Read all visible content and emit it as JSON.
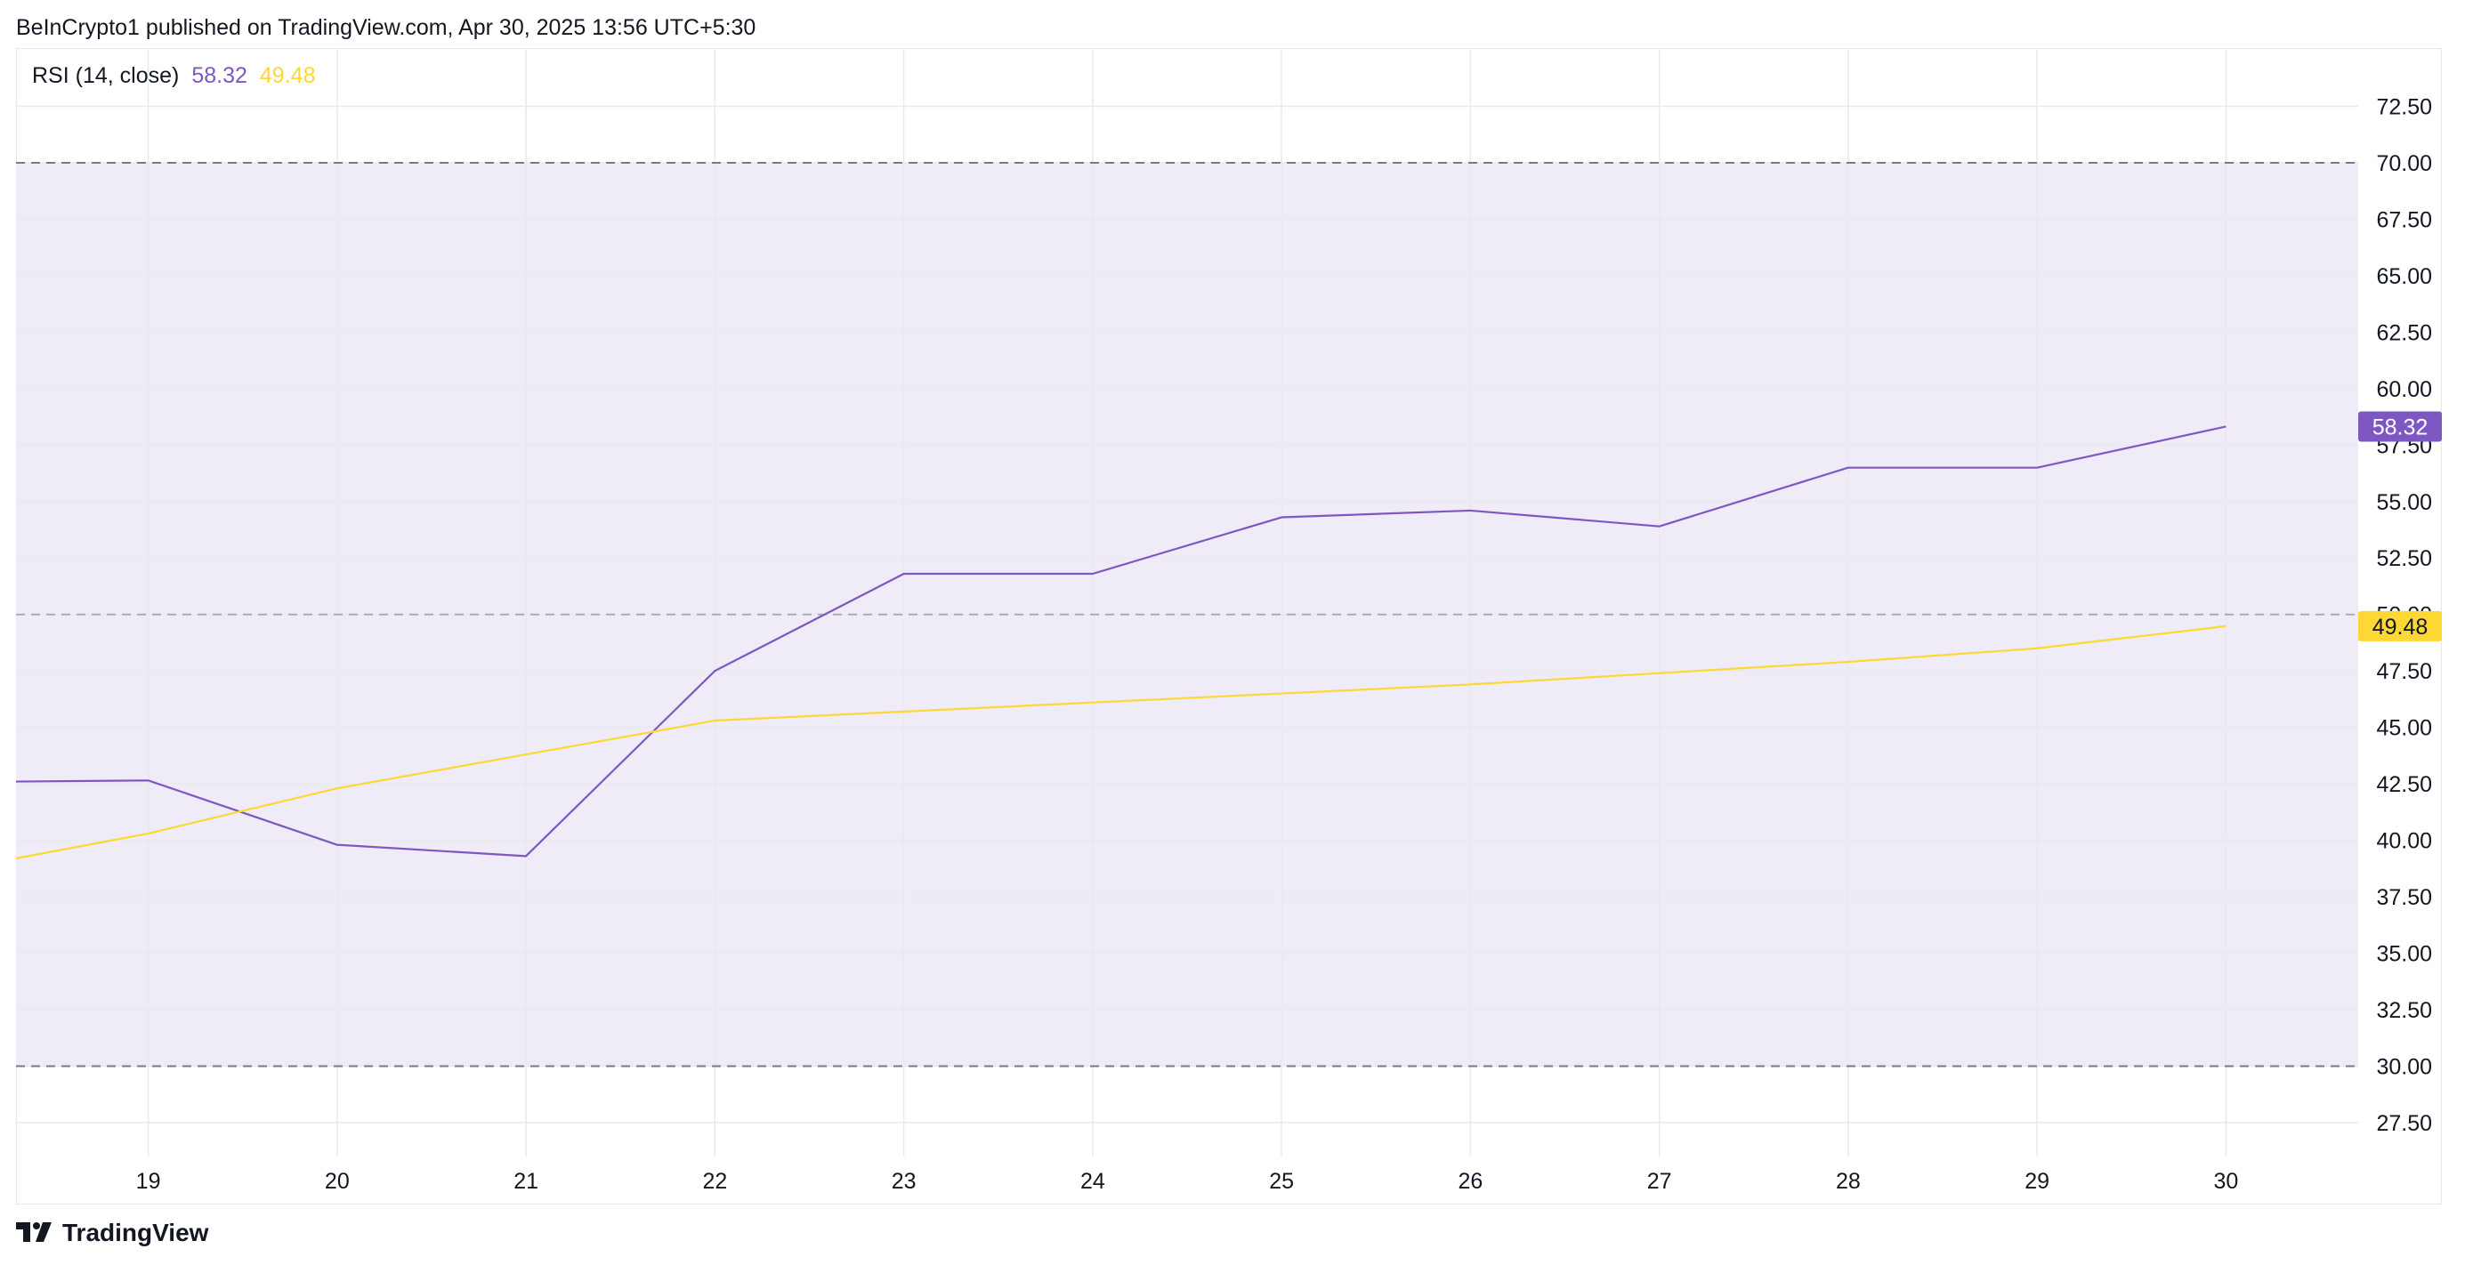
{
  "header": {
    "publisher_line": "BeInCrypto1 published on TradingView.com, Apr 30, 2025 13:56 UTC+5:30"
  },
  "legend": {
    "indicator": "RSI (14, close)",
    "rsi_value": "58.32",
    "ma_value": "49.48"
  },
  "footer": {
    "logo_icon": "tradingview-logo-icon",
    "brand": "TradingView"
  },
  "colors": {
    "rsi_line": "#7e57c2",
    "ma_line": "#fdd835",
    "band_fill": "#efebf7",
    "band_line": "#787b86",
    "grid": "#e9e9ee"
  },
  "chart_data": {
    "type": "line",
    "x": [
      18.3,
      19,
      20,
      21,
      22,
      23,
      24,
      25,
      26,
      27,
      28,
      29,
      30
    ],
    "x_ticks": [
      "19",
      "20",
      "21",
      "22",
      "23",
      "24",
      "25",
      "26",
      "27",
      "28",
      "29",
      "30"
    ],
    "x_tick_values": [
      19,
      20,
      21,
      22,
      23,
      24,
      25,
      26,
      27,
      28,
      29,
      30
    ],
    "xlim": [
      18.3,
      30.7
    ],
    "y_ticks": [
      "27.50",
      "30.00",
      "32.50",
      "35.00",
      "37.50",
      "40.00",
      "42.50",
      "45.00",
      "47.50",
      "50.00",
      "52.50",
      "55.00",
      "57.50",
      "60.00",
      "62.50",
      "65.00",
      "67.50",
      "70.00",
      "72.50"
    ],
    "y_tick_values": [
      27.5,
      30,
      32.5,
      35,
      37.5,
      40,
      42.5,
      45,
      47.5,
      50,
      52.5,
      55,
      57.5,
      60,
      62.5,
      65,
      67.5,
      70,
      72.5
    ],
    "ylim": [
      26,
      75
    ],
    "bands": {
      "upper": 70,
      "middle": 50,
      "lower": 30
    },
    "series": [
      {
        "values": [
          42.6,
          42.65,
          39.8,
          39.3,
          47.5,
          51.8,
          51.8,
          54.3,
          54.6,
          53.9,
          56.5,
          56.5,
          58.32
        ]
      },
      {
        "values": [
          39.2,
          40.3,
          42.3,
          43.8,
          45.3,
          45.7,
          46.1,
          46.5,
          46.9,
          47.4,
          47.9,
          48.5,
          49.48
        ]
      }
    ],
    "last_labels": [
      "58.32",
      "49.48"
    ],
    "grid": true,
    "title": "",
    "xlabel": "",
    "ylabel": ""
  }
}
